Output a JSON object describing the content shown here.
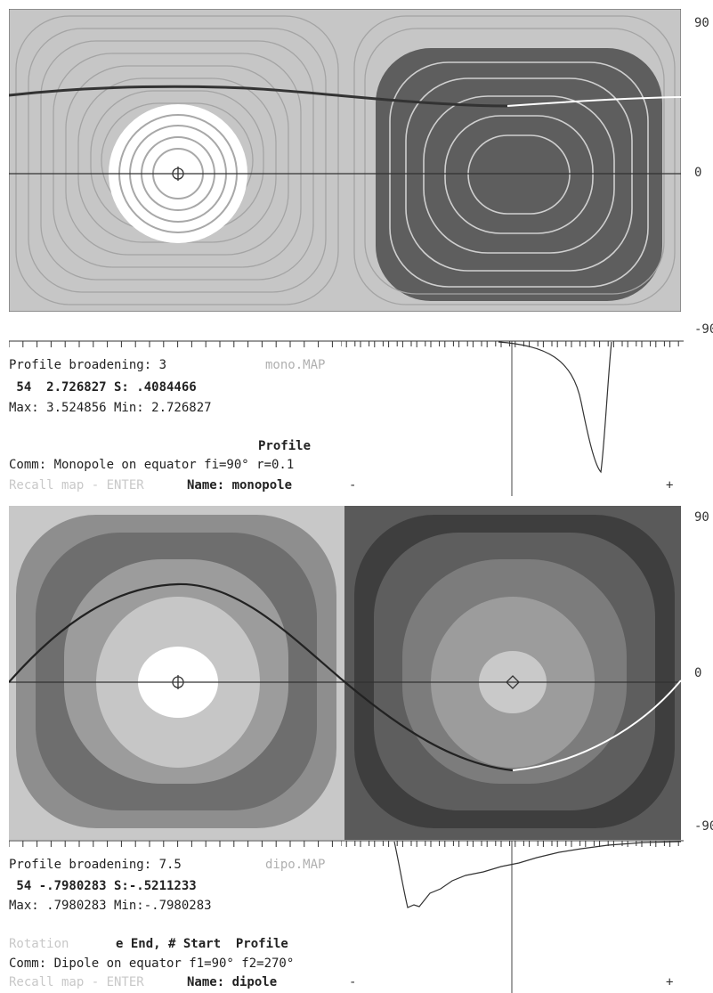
{
  "panels": [
    {
      "lat_labels": [
        "90",
        "0",
        "-90"
      ],
      "profile_broadening": "Profile broadening: 3",
      "file_name": "mono.MAP",
      "stats_line": " 54  2.726827 S: .4084466",
      "maxmin_line": "Max: 3.524856 Min: 2.726827",
      "mode_left": "",
      "mode_right": "Profile",
      "comment": "Comm: Monopole on equator fi=90° r=0.1",
      "recall": "Recall map - ENTER",
      "name_line": "Name: monopole",
      "profile_minus": "-",
      "profile_plus": "+"
    },
    {
      "lat_labels": [
        "90",
        "0",
        "-90"
      ],
      "profile_broadening": "Profile broadening: 7.5",
      "file_name": "dipo.MAP",
      "stats_line": " 54 -.7980283 S:-.5211233",
      "maxmin_line": "Max: .7980283 Min:-.7980283",
      "mode_left": "Rotation",
      "mode_right": "e End, # Start  Profile",
      "comment": "Comm: Dipole on equator f1=90° f2=270°",
      "recall": "Recall map - ENTER",
      "name_line": "Name: dipole",
      "profile_minus": "-",
      "profile_plus": "+"
    }
  ],
  "colors": {
    "light_gray": "#c8c8c8",
    "mid_gray": "#8e8e8e",
    "dark_gray": "#555555",
    "contour": "#a6a6a6",
    "white": "#ffffff"
  }
}
